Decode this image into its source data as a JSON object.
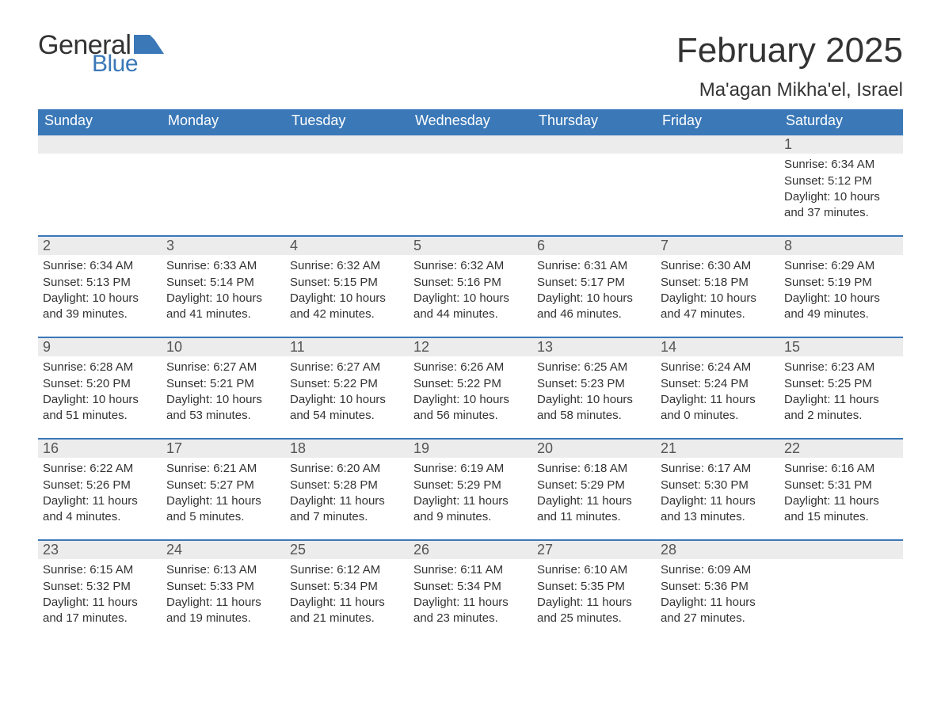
{
  "logo": {
    "general": "General",
    "blue": "Blue",
    "flag_color": "#3a78b8",
    "text_color": "#333333"
  },
  "title": "February 2025",
  "subtitle": "Ma'agan Mikha'el, Israel",
  "colors": {
    "header_bg": "#3a78b8",
    "header_text": "#ffffff",
    "daynum_bg": "#ececec",
    "daynum_border": "#3a78b8",
    "body_text": "#333333",
    "page_bg": "#ffffff"
  },
  "columns": [
    "Sunday",
    "Monday",
    "Tuesday",
    "Wednesday",
    "Thursday",
    "Friday",
    "Saturday"
  ],
  "weeks": [
    [
      {
        "day": "",
        "sunrise": "",
        "sunset": "",
        "daylight1": "",
        "daylight2": ""
      },
      {
        "day": "",
        "sunrise": "",
        "sunset": "",
        "daylight1": "",
        "daylight2": ""
      },
      {
        "day": "",
        "sunrise": "",
        "sunset": "",
        "daylight1": "",
        "daylight2": ""
      },
      {
        "day": "",
        "sunrise": "",
        "sunset": "",
        "daylight1": "",
        "daylight2": ""
      },
      {
        "day": "",
        "sunrise": "",
        "sunset": "",
        "daylight1": "",
        "daylight2": ""
      },
      {
        "day": "",
        "sunrise": "",
        "sunset": "",
        "daylight1": "",
        "daylight2": ""
      },
      {
        "day": "1",
        "sunrise": "Sunrise: 6:34 AM",
        "sunset": "Sunset: 5:12 PM",
        "daylight1": "Daylight: 10 hours",
        "daylight2": "and 37 minutes."
      }
    ],
    [
      {
        "day": "2",
        "sunrise": "Sunrise: 6:34 AM",
        "sunset": "Sunset: 5:13 PM",
        "daylight1": "Daylight: 10 hours",
        "daylight2": "and 39 minutes."
      },
      {
        "day": "3",
        "sunrise": "Sunrise: 6:33 AM",
        "sunset": "Sunset: 5:14 PM",
        "daylight1": "Daylight: 10 hours",
        "daylight2": "and 41 minutes."
      },
      {
        "day": "4",
        "sunrise": "Sunrise: 6:32 AM",
        "sunset": "Sunset: 5:15 PM",
        "daylight1": "Daylight: 10 hours",
        "daylight2": "and 42 minutes."
      },
      {
        "day": "5",
        "sunrise": "Sunrise: 6:32 AM",
        "sunset": "Sunset: 5:16 PM",
        "daylight1": "Daylight: 10 hours",
        "daylight2": "and 44 minutes."
      },
      {
        "day": "6",
        "sunrise": "Sunrise: 6:31 AM",
        "sunset": "Sunset: 5:17 PM",
        "daylight1": "Daylight: 10 hours",
        "daylight2": "and 46 minutes."
      },
      {
        "day": "7",
        "sunrise": "Sunrise: 6:30 AM",
        "sunset": "Sunset: 5:18 PM",
        "daylight1": "Daylight: 10 hours",
        "daylight2": "and 47 minutes."
      },
      {
        "day": "8",
        "sunrise": "Sunrise: 6:29 AM",
        "sunset": "Sunset: 5:19 PM",
        "daylight1": "Daylight: 10 hours",
        "daylight2": "and 49 minutes."
      }
    ],
    [
      {
        "day": "9",
        "sunrise": "Sunrise: 6:28 AM",
        "sunset": "Sunset: 5:20 PM",
        "daylight1": "Daylight: 10 hours",
        "daylight2": "and 51 minutes."
      },
      {
        "day": "10",
        "sunrise": "Sunrise: 6:27 AM",
        "sunset": "Sunset: 5:21 PM",
        "daylight1": "Daylight: 10 hours",
        "daylight2": "and 53 minutes."
      },
      {
        "day": "11",
        "sunrise": "Sunrise: 6:27 AM",
        "sunset": "Sunset: 5:22 PM",
        "daylight1": "Daylight: 10 hours",
        "daylight2": "and 54 minutes."
      },
      {
        "day": "12",
        "sunrise": "Sunrise: 6:26 AM",
        "sunset": "Sunset: 5:22 PM",
        "daylight1": "Daylight: 10 hours",
        "daylight2": "and 56 minutes."
      },
      {
        "day": "13",
        "sunrise": "Sunrise: 6:25 AM",
        "sunset": "Sunset: 5:23 PM",
        "daylight1": "Daylight: 10 hours",
        "daylight2": "and 58 minutes."
      },
      {
        "day": "14",
        "sunrise": "Sunrise: 6:24 AM",
        "sunset": "Sunset: 5:24 PM",
        "daylight1": "Daylight: 11 hours",
        "daylight2": "and 0 minutes."
      },
      {
        "day": "15",
        "sunrise": "Sunrise: 6:23 AM",
        "sunset": "Sunset: 5:25 PM",
        "daylight1": "Daylight: 11 hours",
        "daylight2": "and 2 minutes."
      }
    ],
    [
      {
        "day": "16",
        "sunrise": "Sunrise: 6:22 AM",
        "sunset": "Sunset: 5:26 PM",
        "daylight1": "Daylight: 11 hours",
        "daylight2": "and 4 minutes."
      },
      {
        "day": "17",
        "sunrise": "Sunrise: 6:21 AM",
        "sunset": "Sunset: 5:27 PM",
        "daylight1": "Daylight: 11 hours",
        "daylight2": "and 5 minutes."
      },
      {
        "day": "18",
        "sunrise": "Sunrise: 6:20 AM",
        "sunset": "Sunset: 5:28 PM",
        "daylight1": "Daylight: 11 hours",
        "daylight2": "and 7 minutes."
      },
      {
        "day": "19",
        "sunrise": "Sunrise: 6:19 AM",
        "sunset": "Sunset: 5:29 PM",
        "daylight1": "Daylight: 11 hours",
        "daylight2": "and 9 minutes."
      },
      {
        "day": "20",
        "sunrise": "Sunrise: 6:18 AM",
        "sunset": "Sunset: 5:29 PM",
        "daylight1": "Daylight: 11 hours",
        "daylight2": "and 11 minutes."
      },
      {
        "day": "21",
        "sunrise": "Sunrise: 6:17 AM",
        "sunset": "Sunset: 5:30 PM",
        "daylight1": "Daylight: 11 hours",
        "daylight2": "and 13 minutes."
      },
      {
        "day": "22",
        "sunrise": "Sunrise: 6:16 AM",
        "sunset": "Sunset: 5:31 PM",
        "daylight1": "Daylight: 11 hours",
        "daylight2": "and 15 minutes."
      }
    ],
    [
      {
        "day": "23",
        "sunrise": "Sunrise: 6:15 AM",
        "sunset": "Sunset: 5:32 PM",
        "daylight1": "Daylight: 11 hours",
        "daylight2": "and 17 minutes."
      },
      {
        "day": "24",
        "sunrise": "Sunrise: 6:13 AM",
        "sunset": "Sunset: 5:33 PM",
        "daylight1": "Daylight: 11 hours",
        "daylight2": "and 19 minutes."
      },
      {
        "day": "25",
        "sunrise": "Sunrise: 6:12 AM",
        "sunset": "Sunset: 5:34 PM",
        "daylight1": "Daylight: 11 hours",
        "daylight2": "and 21 minutes."
      },
      {
        "day": "26",
        "sunrise": "Sunrise: 6:11 AM",
        "sunset": "Sunset: 5:34 PM",
        "daylight1": "Daylight: 11 hours",
        "daylight2": "and 23 minutes."
      },
      {
        "day": "27",
        "sunrise": "Sunrise: 6:10 AM",
        "sunset": "Sunset: 5:35 PM",
        "daylight1": "Daylight: 11 hours",
        "daylight2": "and 25 minutes."
      },
      {
        "day": "28",
        "sunrise": "Sunrise: 6:09 AM",
        "sunset": "Sunset: 5:36 PM",
        "daylight1": "Daylight: 11 hours",
        "daylight2": "and 27 minutes."
      },
      {
        "day": "",
        "sunrise": "",
        "sunset": "",
        "daylight1": "",
        "daylight2": ""
      }
    ]
  ]
}
